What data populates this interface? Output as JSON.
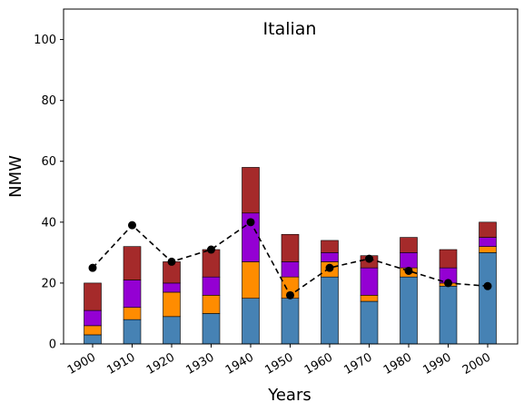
{
  "chart_data": {
    "type": "bar",
    "title": "Italian",
    "xlabel": "Years",
    "ylabel": "NMW",
    "ylim": [
      0,
      110
    ],
    "yticks": [
      0,
      20,
      40,
      60,
      80,
      100
    ],
    "stacked": true,
    "categories": [
      "1900",
      "1910",
      "1920",
      "1930",
      "1940",
      "1950",
      "1960",
      "1970",
      "1980",
      "1990",
      "2000"
    ],
    "series": [
      {
        "color": "#4682b4",
        "values": [
          3,
          8,
          9,
          10,
          15,
          15,
          22,
          14,
          22,
          19,
          30
        ]
      },
      {
        "color": "#ff8c00",
        "values": [
          3,
          4,
          8,
          6,
          12,
          7,
          5,
          2,
          3,
          1,
          2
        ]
      },
      {
        "color": "#9400d3",
        "values": [
          5,
          9,
          3,
          6,
          16,
          5,
          3,
          9,
          5,
          5,
          3
        ]
      },
      {
        "color": "#a52a2a",
        "values": [
          9,
          11,
          7,
          9,
          15,
          9,
          4,
          4,
          5,
          6,
          5
        ]
      }
    ],
    "line": {
      "type": "line",
      "style": "dashed",
      "color": "#000000",
      "marker": "circle",
      "values": [
        25,
        39,
        27,
        31,
        40,
        16,
        25,
        28,
        24,
        20,
        19
      ]
    },
    "grid": false,
    "legend": "none"
  }
}
